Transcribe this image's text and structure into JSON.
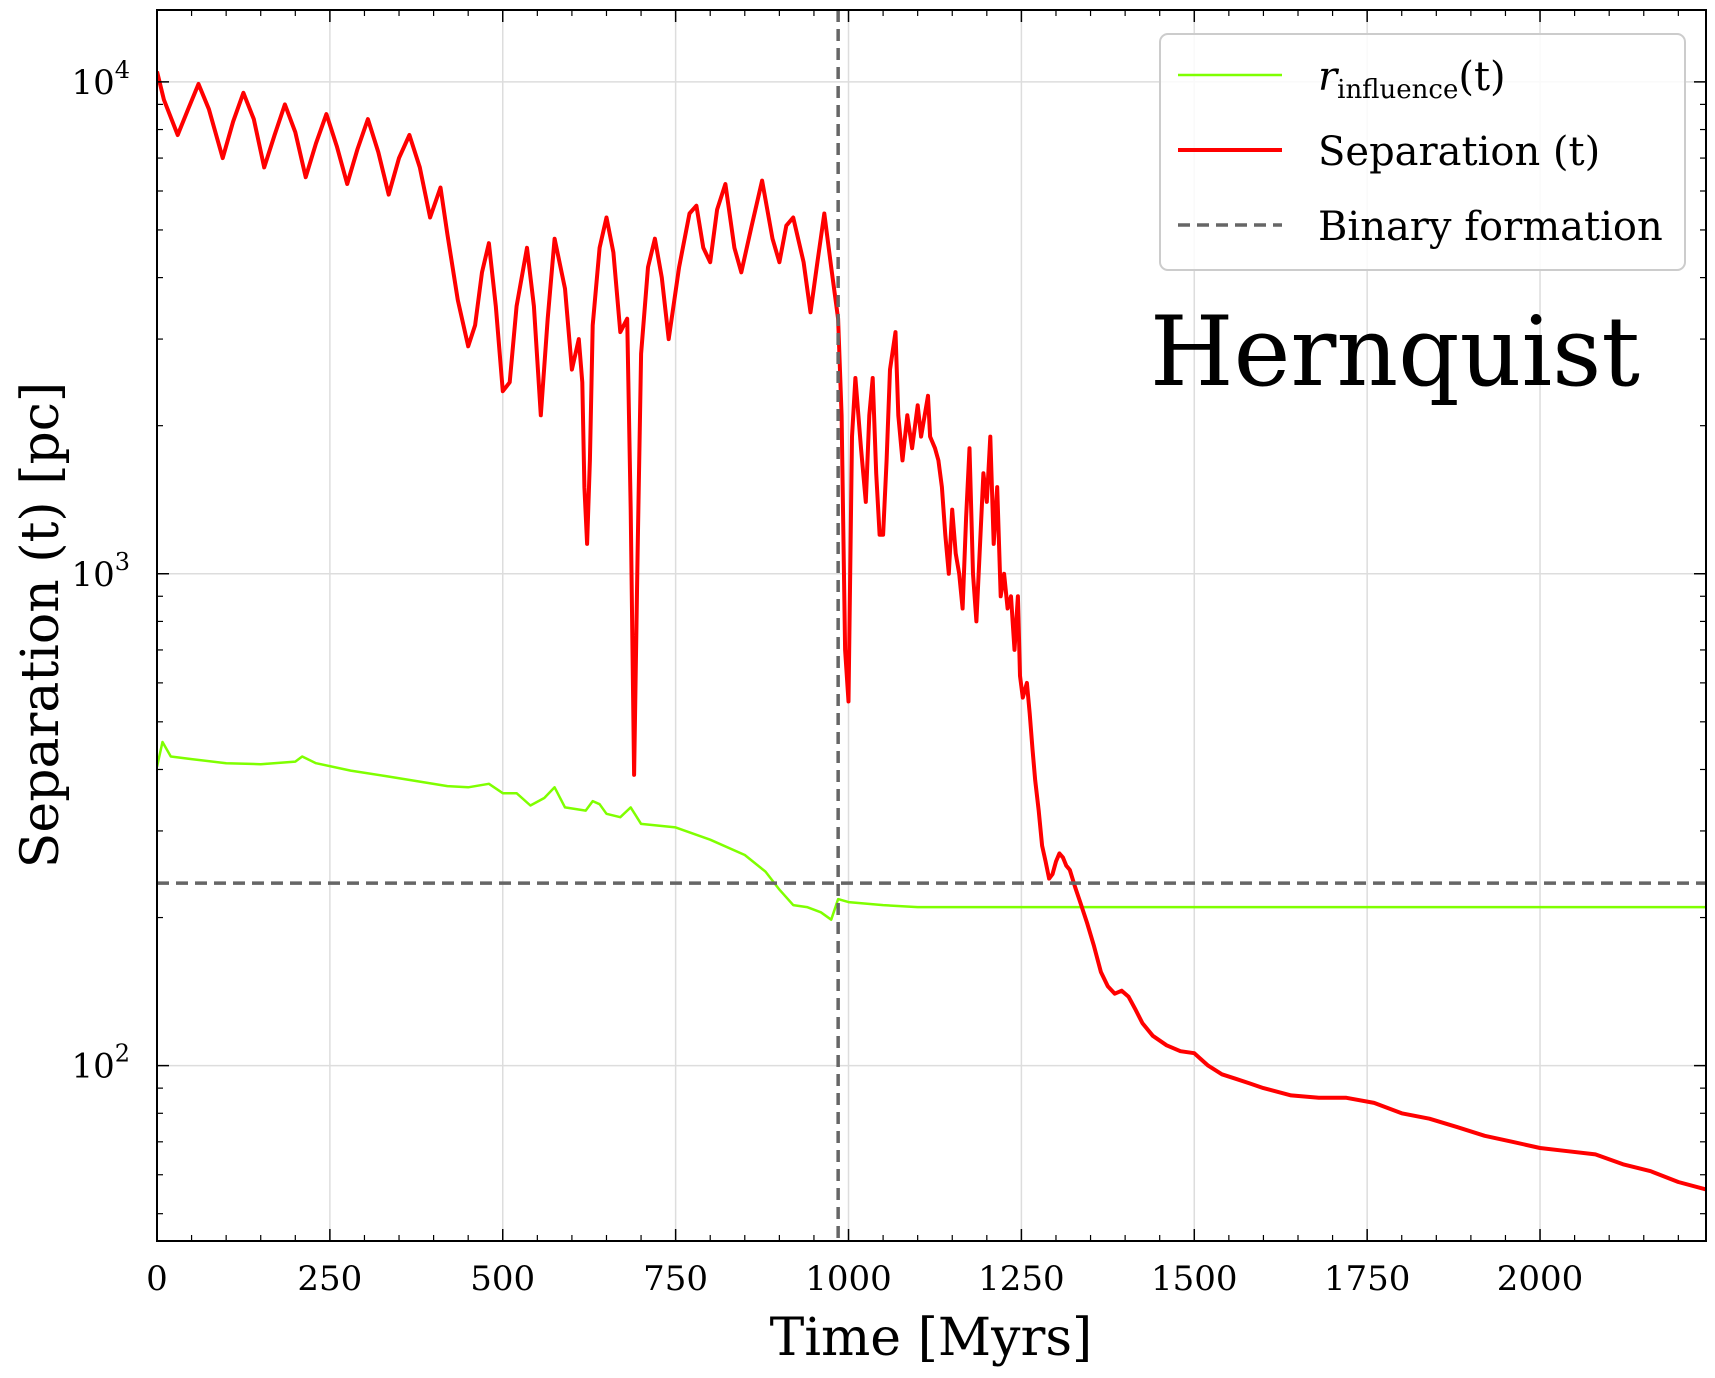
{
  "chart_data": {
    "type": "line",
    "xlabel": "Time [Myrs]",
    "ylabel": "Separation (t) [pc]",
    "xlim": [
      0,
      2240
    ],
    "ylim": [
      44,
      14000
    ],
    "yscale": "log",
    "grid": true,
    "legend_position": "top-right",
    "annotation": "Hernquist",
    "x_ticks": [
      "0",
      "250",
      "500",
      "750",
      "1000",
      "1250",
      "1500",
      "1750",
      "2000"
    ],
    "y_ticks": [
      {
        "base": "10",
        "exp": "2",
        "value": 100
      },
      {
        "base": "10",
        "exp": "3",
        "value": 1000
      },
      {
        "base": "10",
        "exp": "4",
        "value": 10000
      }
    ],
    "series": [
      {
        "name_main": "r",
        "name_sub": "influence",
        "name_suffix": "(t)",
        "color": "#7fff00",
        "style": "solid",
        "points": [
          [
            0,
            405
          ],
          [
            8,
            455
          ],
          [
            20,
            425
          ],
          [
            50,
            420
          ],
          [
            100,
            412
          ],
          [
            150,
            410
          ],
          [
            200,
            415
          ],
          [
            210,
            425
          ],
          [
            230,
            412
          ],
          [
            280,
            398
          ],
          [
            330,
            388
          ],
          [
            380,
            378
          ],
          [
            420,
            370
          ],
          [
            450,
            368
          ],
          [
            480,
            374
          ],
          [
            500,
            358
          ],
          [
            520,
            358
          ],
          [
            540,
            338
          ],
          [
            560,
            350
          ],
          [
            575,
            368
          ],
          [
            590,
            335
          ],
          [
            620,
            330
          ],
          [
            630,
            345
          ],
          [
            640,
            340
          ],
          [
            650,
            325
          ],
          [
            670,
            320
          ],
          [
            685,
            335
          ],
          [
            700,
            310
          ],
          [
            750,
            305
          ],
          [
            800,
            288
          ],
          [
            850,
            268
          ],
          [
            880,
            248
          ],
          [
            900,
            228
          ],
          [
            920,
            212
          ],
          [
            940,
            210
          ],
          [
            960,
            205
          ],
          [
            975,
            198
          ],
          [
            985,
            218
          ],
          [
            1000,
            215
          ],
          [
            1050,
            212
          ],
          [
            1100,
            210
          ],
          [
            1200,
            210
          ],
          [
            1300,
            210
          ],
          [
            1400,
            210
          ],
          [
            1500,
            210
          ],
          [
            1600,
            210
          ],
          [
            1700,
            210
          ],
          [
            1800,
            210
          ],
          [
            1900,
            210
          ],
          [
            2000,
            210
          ],
          [
            2100,
            210
          ],
          [
            2240,
            210
          ]
        ]
      },
      {
        "name": "Separation (t)",
        "color": "#ff0000",
        "style": "solid",
        "points": [
          [
            0,
            10500
          ],
          [
            10,
            9200
          ],
          [
            30,
            7800
          ],
          [
            45,
            8800
          ],
          [
            60,
            9900
          ],
          [
            75,
            8800
          ],
          [
            95,
            7000
          ],
          [
            110,
            8300
          ],
          [
            125,
            9500
          ],
          [
            140,
            8400
          ],
          [
            155,
            6700
          ],
          [
            170,
            7800
          ],
          [
            185,
            9000
          ],
          [
            200,
            7900
          ],
          [
            215,
            6400
          ],
          [
            230,
            7500
          ],
          [
            245,
            8600
          ],
          [
            260,
            7400
          ],
          [
            275,
            6200
          ],
          [
            290,
            7300
          ],
          [
            305,
            8400
          ],
          [
            320,
            7200
          ],
          [
            335,
            5900
          ],
          [
            350,
            7000
          ],
          [
            365,
            7800
          ],
          [
            380,
            6700
          ],
          [
            395,
            5300
          ],
          [
            410,
            6100
          ],
          [
            420,
            4900
          ],
          [
            435,
            3600
          ],
          [
            450,
            2900
          ],
          [
            460,
            3200
          ],
          [
            470,
            4100
          ],
          [
            480,
            4700
          ],
          [
            490,
            3500
          ],
          [
            500,
            2350
          ],
          [
            510,
            2450
          ],
          [
            520,
            3500
          ],
          [
            535,
            4600
          ],
          [
            545,
            3500
          ],
          [
            555,
            2100
          ],
          [
            565,
            3300
          ],
          [
            575,
            4800
          ],
          [
            590,
            3800
          ],
          [
            600,
            2600
          ],
          [
            610,
            3000
          ],
          [
            615,
            2450
          ],
          [
            618,
            1500
          ],
          [
            622,
            1150
          ],
          [
            626,
            1700
          ],
          [
            630,
            3200
          ],
          [
            640,
            4600
          ],
          [
            650,
            5300
          ],
          [
            660,
            4500
          ],
          [
            670,
            3100
          ],
          [
            680,
            3300
          ],
          [
            685,
            1350
          ],
          [
            690,
            390
          ],
          [
            695,
            1100
          ],
          [
            700,
            2800
          ],
          [
            710,
            4200
          ],
          [
            720,
            4800
          ],
          [
            730,
            4000
          ],
          [
            740,
            3000
          ],
          [
            755,
            4200
          ],
          [
            770,
            5400
          ],
          [
            780,
            5600
          ],
          [
            790,
            4600
          ],
          [
            800,
            4300
          ],
          [
            810,
            5500
          ],
          [
            822,
            6200
          ],
          [
            835,
            4600
          ],
          [
            845,
            4100
          ],
          [
            860,
            5100
          ],
          [
            875,
            6300
          ],
          [
            890,
            4800
          ],
          [
            900,
            4300
          ],
          [
            910,
            5100
          ],
          [
            920,
            5300
          ],
          [
            935,
            4300
          ],
          [
            945,
            3400
          ],
          [
            955,
            4300
          ],
          [
            965,
            5400
          ],
          [
            975,
            4200
          ],
          [
            985,
            3300
          ],
          [
            990,
            2100
          ],
          [
            995,
            700
          ],
          [
            1000,
            550
          ],
          [
            1005,
            1900
          ],
          [
            1010,
            2500
          ],
          [
            1018,
            1800
          ],
          [
            1025,
            1400
          ],
          [
            1030,
            2100
          ],
          [
            1035,
            2500
          ],
          [
            1040,
            1600
          ],
          [
            1045,
            1200
          ],
          [
            1050,
            1200
          ],
          [
            1055,
            1700
          ],
          [
            1060,
            2600
          ],
          [
            1068,
            3100
          ],
          [
            1072,
            2100
          ],
          [
            1078,
            1700
          ],
          [
            1085,
            2100
          ],
          [
            1092,
            1800
          ],
          [
            1100,
            2200
          ],
          [
            1105,
            1900
          ],
          [
            1115,
            2300
          ],
          [
            1118,
            1900
          ],
          [
            1125,
            1800
          ],
          [
            1130,
            1700
          ],
          [
            1135,
            1500
          ],
          [
            1140,
            1200
          ],
          [
            1145,
            1000
          ],
          [
            1150,
            1350
          ],
          [
            1155,
            1100
          ],
          [
            1160,
            1000
          ],
          [
            1165,
            850
          ],
          [
            1170,
            1300
          ],
          [
            1175,
            1800
          ],
          [
            1180,
            1000
          ],
          [
            1185,
            800
          ],
          [
            1195,
            1600
          ],
          [
            1200,
            1400
          ],
          [
            1205,
            1900
          ],
          [
            1210,
            1150
          ],
          [
            1215,
            1500
          ],
          [
            1220,
            900
          ],
          [
            1225,
            1000
          ],
          [
            1230,
            850
          ],
          [
            1235,
            900
          ],
          [
            1240,
            700
          ],
          [
            1245,
            900
          ],
          [
            1248,
            620
          ],
          [
            1252,
            560
          ],
          [
            1258,
            600
          ],
          [
            1262,
            520
          ],
          [
            1266,
            440
          ],
          [
            1270,
            380
          ],
          [
            1275,
            330
          ],
          [
            1280,
            280
          ],
          [
            1285,
            260
          ],
          [
            1290,
            240
          ],
          [
            1295,
            245
          ],
          [
            1300,
            260
          ],
          [
            1305,
            270
          ],
          [
            1310,
            265
          ],
          [
            1315,
            255
          ],
          [
            1320,
            250
          ],
          [
            1328,
            230
          ],
          [
            1335,
            215
          ],
          [
            1345,
            195
          ],
          [
            1355,
            175
          ],
          [
            1365,
            155
          ],
          [
            1375,
            145
          ],
          [
            1385,
            140
          ],
          [
            1395,
            142
          ],
          [
            1405,
            138
          ],
          [
            1415,
            130
          ],
          [
            1425,
            122
          ],
          [
            1440,
            115
          ],
          [
            1460,
            110
          ],
          [
            1480,
            107
          ],
          [
            1500,
            106
          ],
          [
            1520,
            100
          ],
          [
            1540,
            96
          ],
          [
            1560,
            94
          ],
          [
            1580,
            92
          ],
          [
            1600,
            90
          ],
          [
            1640,
            87
          ],
          [
            1680,
            86
          ],
          [
            1720,
            86
          ],
          [
            1760,
            84
          ],
          [
            1800,
            80
          ],
          [
            1840,
            78
          ],
          [
            1880,
            75
          ],
          [
            1920,
            72
          ],
          [
            1960,
            70
          ],
          [
            2000,
            68
          ],
          [
            2040,
            67
          ],
          [
            2080,
            66
          ],
          [
            2120,
            63
          ],
          [
            2160,
            61
          ],
          [
            2200,
            58
          ],
          [
            2240,
            56
          ]
        ]
      }
    ],
    "binary_formation": {
      "name": "Binary formation",
      "color": "#666666",
      "x": 985,
      "y": 235
    }
  }
}
